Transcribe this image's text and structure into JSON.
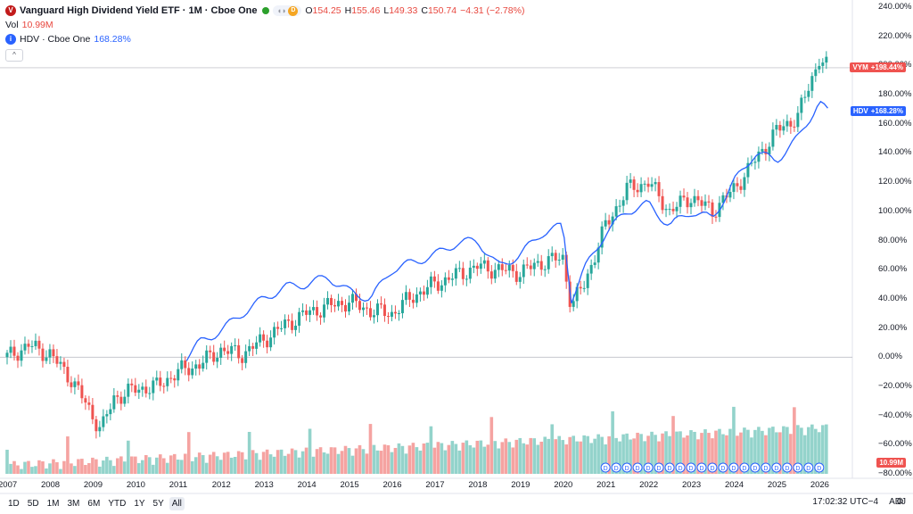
{
  "legend": {
    "symbol_badge": "V",
    "title": "Vanguard High Dividend Yield ETF · 1M · Cboe One",
    "pill_d": "D",
    "ohlc": {
      "o_label": "O",
      "o": "154.25",
      "h_label": "H",
      "h": "155.46",
      "l_label": "L",
      "l": "149.33",
      "c_label": "C",
      "c": "150.74",
      "change": "−4.31 (−2.78%)"
    },
    "vol_label": "Vol",
    "vol_value": "10.99M",
    "compare_badge": "i",
    "compare_name": "HDV · Cboe One",
    "compare_value": "168.28%",
    "collapse_icon": "^"
  },
  "y_axis": [
    "240.00%",
    "220.00%",
    "200.00%",
    "180.00%",
    "160.00%",
    "140.00%",
    "120.00%",
    "100.00%",
    "80.00%",
    "60.00%",
    "40.00%",
    "20.00%",
    "0.00%",
    "−20.00%",
    "−40.00%",
    "−60.00%",
    "−80.00%"
  ],
  "x_axis": [
    "2007",
    "2008",
    "2009",
    "2010",
    "2011",
    "2012",
    "2013",
    "2014",
    "2015",
    "2016",
    "2017",
    "2018",
    "2019",
    "2020",
    "2021",
    "2022",
    "2023",
    "2024",
    "2025",
    "2026"
  ],
  "tags": {
    "vym_label": "VYM",
    "vym_value": "+198.44%",
    "hdv_label": "HDV",
    "hdv_value": "+168.28%",
    "vol_value": "10.99M"
  },
  "dividend_marker": "D",
  "bottom": {
    "ranges": [
      "1D",
      "5D",
      "1M",
      "3M",
      "6M",
      "YTD",
      "1Y",
      "5Y",
      "All"
    ],
    "active_range": "All",
    "time": "17:02:32 UTC−4",
    "adj": "ADJ"
  },
  "colors": {
    "up": "#26a69a",
    "down": "#ef5350",
    "hdv": "#2962ff",
    "vol_up": "#93d3cb",
    "vol_down": "#f5a3a1"
  },
  "chart_data": {
    "type": "line",
    "y_unit": "%",
    "ylim": [
      -80,
      240
    ],
    "series": [
      {
        "name": "VYM",
        "x": [
          2007.0,
          2007.5,
          2008.0,
          2008.5,
          2009.0,
          2009.2,
          2009.5,
          2010.0,
          2010.5,
          2011.0,
          2011.5,
          2012.0,
          2012.5,
          2013.0,
          2013.5,
          2014.0,
          2014.5,
          2015.0,
          2015.5,
          2016.0,
          2016.5,
          2017.0,
          2017.5,
          2018.0,
          2018.5,
          2019.0,
          2019.5,
          2020.0,
          2020.2,
          2020.5,
          2021.0,
          2021.5,
          2022.0,
          2022.5,
          2023.0,
          2023.5,
          2024.0,
          2024.5,
          2025.0,
          2025.5,
          2026.0,
          2026.2
        ],
        "y": [
          0,
          8,
          2,
          -15,
          -40,
          -50,
          -28,
          -22,
          -20,
          -10,
          -5,
          5,
          2,
          12,
          22,
          30,
          35,
          38,
          32,
          30,
          42,
          50,
          56,
          62,
          60,
          58,
          65,
          68,
          35,
          50,
          90,
          115,
          120,
          100,
          110,
          100,
          115,
          135,
          155,
          165,
          205,
          198
        ]
      },
      {
        "name": "HDV",
        "x": [
          2011.2,
          2011.5,
          2012.0,
          2012.5,
          2013.0,
          2013.5,
          2014.0,
          2014.5,
          2015.0,
          2015.5,
          2016.0,
          2016.5,
          2017.0,
          2017.5,
          2018.0,
          2018.5,
          2019.0,
          2019.5,
          2020.0,
          2020.2,
          2020.5,
          2021.0,
          2021.5,
          2022.0,
          2022.5,
          2023.0,
          2023.5,
          2024.0,
          2024.5,
          2025.0,
          2025.5,
          2026.0,
          2026.2
        ],
        "y": [
          0,
          10,
          18,
          30,
          40,
          48,
          50,
          55,
          45,
          40,
          60,
          65,
          70,
          78,
          80,
          62,
          70,
          85,
          90,
          40,
          60,
          85,
          100,
          105,
          90,
          100,
          95,
          120,
          140,
          135,
          150,
          175,
          168
        ]
      }
    ]
  }
}
